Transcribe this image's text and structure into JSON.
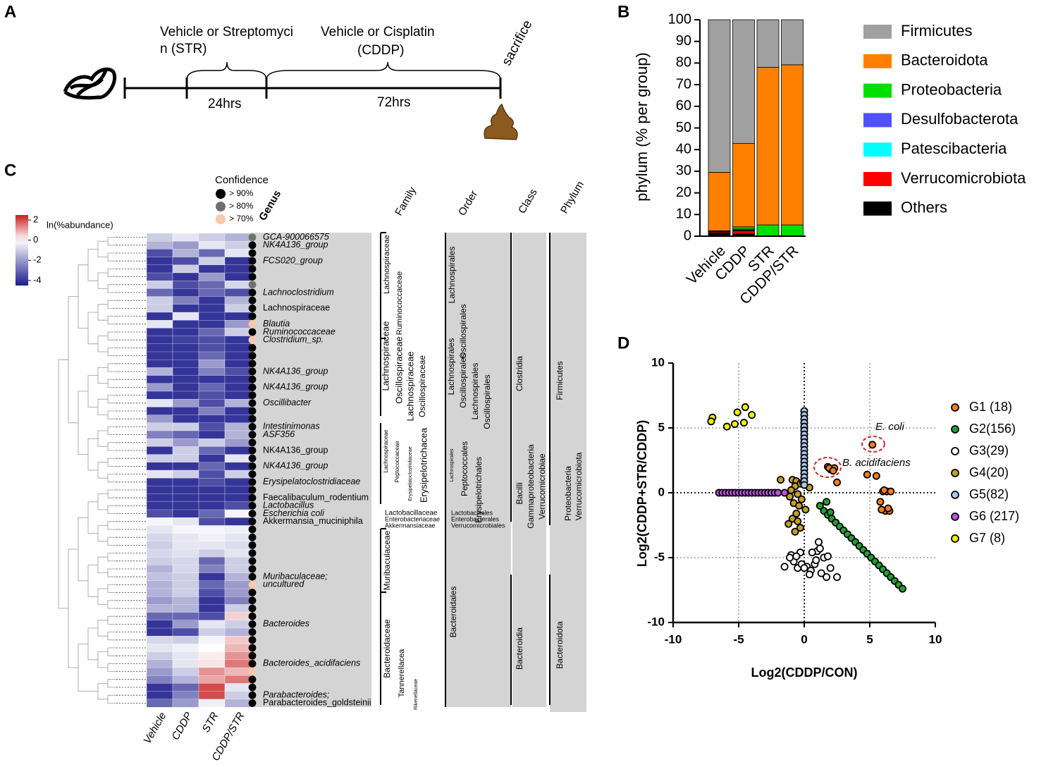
{
  "panel_labels": [
    "A",
    "B",
    "C",
    "D"
  ],
  "timeline": {
    "steps": [
      {
        "label_lines": [
          "Vehicle or Streptomyci",
          "n (STR)"
        ],
        "duration": "24hrs"
      },
      {
        "label_lines": [
          "Vehicle or Cisplatin",
          "(CDDP)"
        ],
        "duration": "72hrs"
      }
    ],
    "end": "sacrifice"
  },
  "chart_data": [
    {
      "type": "bar",
      "stacked": true,
      "ylabel": "phylum (% per group)",
      "categories": [
        "Vehicle",
        "CDDP",
        "STR",
        "CDDP/STR"
      ],
      "ylim": [
        0,
        100
      ],
      "yticks": [
        0,
        10,
        20,
        30,
        40,
        50,
        60,
        70,
        80,
        90,
        100
      ],
      "legend": "right",
      "series": [
        {
          "name": "Firmicutes",
          "color": "#a0a0a0",
          "values": [
            70.5,
            57.2,
            22,
            20.8
          ]
        },
        {
          "name": "Bacteroidota",
          "color": "#ff8000",
          "values": [
            27,
            38.5,
            72.8,
            74
          ]
        },
        {
          "name": "Proteobacteria",
          "color": "#00e000",
          "values": [
            0.2,
            1,
            5,
            5
          ]
        },
        {
          "name": "Desulfobacterota",
          "color": "#5050ff",
          "values": [
            0.3,
            0.5,
            0,
            0
          ]
        },
        {
          "name": "Patescibacteria",
          "color": "#00ffff",
          "values": [
            0,
            0.3,
            0,
            0
          ]
        },
        {
          "name": "Verrucomicrobiota",
          "color": "#ff0000",
          "values": [
            0.5,
            1.5,
            0,
            0
          ]
        },
        {
          "name": "Others",
          "color": "#000000",
          "values": [
            1.5,
            1,
            0.2,
            0.2
          ]
        }
      ]
    },
    {
      "type": "heatmap",
      "colorbar_label": "ln(%abundance)",
      "clim": [
        -4.5,
        2.5
      ],
      "cticks": [
        2,
        0,
        -2,
        -4
      ],
      "colors": {
        "low": "#1c1c8c",
        "mid": "#ffffff",
        "high": "#c81e1e"
      },
      "columns": [
        "Vehicle",
        "CDDP",
        "STR",
        "CDDP/STR"
      ],
      "row_header": "Genus",
      "rows": [
        "GCA-900066575",
        "NK4A136_group",
        null,
        "FCS020_group",
        null,
        null,
        null,
        "Lachnoclostridium",
        null,
        "Lachnospiraceae",
        null,
        "Blautia",
        "Ruminococcaceae",
        "Clostridium_sp.",
        null,
        null,
        null,
        "NK4A136_group",
        null,
        "NK4A136_group",
        null,
        "Oscillibacter",
        null,
        null,
        "Intestinimonas",
        "ASF356",
        null,
        "NK4A136_group",
        null,
        "NK4A136_group",
        null,
        "Erysipelatoclostridiaceae",
        null,
        "Faecalibaculum_rodentium",
        "Lactobacillus",
        "Escherichia coli",
        "Akkermansia_muciniphila",
        null,
        null,
        null,
        null,
        null,
        null,
        "Muribaculaceae;",
        "uncultured",
        null,
        null,
        null,
        null,
        "Bacteroides",
        null,
        null,
        null,
        null,
        "Bacteroides_acidifaciens",
        null,
        null,
        null,
        "Parabacteroides;",
        "Parabacteroides_goldsteinii"
      ],
      "values": [
        [
          -1,
          -0.5,
          -1,
          -1.5
        ],
        [
          -1.5,
          -2,
          -0.5,
          -1
        ],
        [
          -3.5,
          -1.5,
          -3,
          -0.5
        ],
        [
          -4,
          -3.5,
          -1,
          -4
        ],
        [
          -4,
          -1,
          -4,
          -4
        ],
        [
          -3.5,
          -4,
          -2,
          -4
        ],
        [
          -1,
          -3.5,
          -3,
          -0.8
        ],
        [
          -3,
          -4,
          -3,
          -3.5
        ],
        [
          -1,
          -2.5,
          -4,
          -1.5
        ],
        [
          -1,
          -4,
          -4,
          -1
        ],
        [
          -4,
          -0.5,
          -4,
          -4
        ],
        [
          -0.5,
          -4,
          -4,
          -2
        ],
        [
          -4,
          -4,
          -3,
          -1
        ],
        [
          -4,
          -3.8,
          -3.5,
          -4
        ],
        [
          -4,
          -4,
          -3.5,
          -4
        ],
        [
          -4,
          -4,
          -3,
          -4
        ],
        [
          -4,
          -4,
          -2,
          -4
        ],
        [
          -1.5,
          -4,
          -2.5,
          -3.5
        ],
        [
          -4,
          -4,
          -4,
          -4
        ],
        [
          -2,
          -4,
          -3,
          -4
        ],
        [
          -4,
          -4,
          -3.5,
          -4
        ],
        [
          -0.5,
          -2,
          -3.5,
          -1.5
        ],
        [
          -4,
          -4,
          -2.5,
          -4
        ],
        [
          -2,
          -4,
          -4,
          -4
        ],
        [
          -1,
          -1,
          -3.5,
          -1.5
        ],
        [
          -2.5,
          -3,
          -4,
          -1.5
        ],
        [
          -1,
          -2,
          -1,
          -2
        ],
        [
          -4,
          -1,
          -3,
          -4
        ],
        [
          -1,
          -1,
          -4,
          -0.5
        ],
        [
          -4,
          -4,
          -3,
          -4
        ],
        [
          -0.5,
          -1,
          -3.5,
          -1
        ],
        [
          -4,
          -4,
          -3.5,
          -4
        ],
        [
          -4,
          -4,
          -4,
          -4
        ],
        [
          -4,
          -4,
          -4,
          -4
        ],
        [
          -4,
          -4,
          -4,
          -3.5
        ],
        [
          -3.5,
          -4,
          -3,
          -0.2
        ],
        [
          -0.2,
          -0.5,
          -3.5,
          -4
        ],
        [
          -0.5,
          -0.2,
          -0.2,
          -0.3
        ],
        [
          -0.8,
          -0.5,
          -0.3,
          -0.5
        ],
        [
          -1,
          -0.5,
          -0.5,
          -0.7
        ],
        [
          -0.8,
          -0.6,
          -1,
          -0.5
        ],
        [
          -1,
          -0.8,
          -3,
          -1
        ],
        [
          -1.5,
          -0.8,
          -2.5,
          -1
        ],
        [
          -1.2,
          -1,
          -4,
          -1.5
        ],
        [
          -1.5,
          -1,
          -3,
          -2
        ],
        [
          -1.5,
          -1,
          -3.5,
          -2
        ],
        [
          -2,
          -1.5,
          -4,
          -2.5
        ],
        [
          -1.5,
          -1.5,
          -4,
          -1
        ],
        [
          -3,
          -3,
          -3.5,
          0.5
        ],
        [
          -4,
          -2,
          -0.5,
          -1
        ],
        [
          -4,
          -3.5,
          -1,
          -1.5
        ],
        [
          -0.8,
          -1,
          -0.2,
          0.6
        ],
        [
          -0.5,
          -0.3,
          0,
          0.8
        ],
        [
          -1,
          -0.5,
          0.2,
          1.2
        ],
        [
          -1.5,
          -0.5,
          0.3,
          1.5
        ],
        [
          -2,
          -1,
          1.2,
          0.8
        ],
        [
          -2.5,
          -1.5,
          1,
          1.5
        ],
        [
          -4,
          -3,
          2,
          -0.5
        ],
        [
          -4,
          -2.5,
          2,
          -1
        ],
        [
          -3,
          -2,
          -0.3,
          -1.5
        ]
      ],
      "confidence_title": "Confidence",
      "confidence_levels": [
        {
          "value": 90,
          "label": "> 90%",
          "color": "#000000"
        },
        {
          "value": 80,
          "label": "> 80%",
          "color": "#707070"
        },
        {
          "value": 70,
          "label": "> 70%",
          "color": "#f8c8a8"
        }
      ],
      "confidence": [
        80,
        90,
        90,
        90,
        90,
        90,
        80,
        90,
        90,
        90,
        90,
        70,
        90,
        70,
        90,
        90,
        90,
        90,
        90,
        90,
        90,
        90,
        90,
        90,
        90,
        90,
        90,
        90,
        90,
        90,
        90,
        90,
        90,
        90,
        90,
        90,
        90,
        90,
        90,
        90,
        90,
        90,
        90,
        90,
        70,
        90,
        90,
        90,
        90,
        90,
        90,
        90,
        90,
        90,
        90,
        70,
        90,
        90,
        90,
        90
      ],
      "taxonomy": [
        {
          "header": "Family",
          "labels": [
            "Lachnospiraceae",
            "Ruminococcaceae",
            "Lachnospiraceae",
            "Oscillospiraceae",
            "Lachnospiraceae",
            "Oscillospiraceae",
            "Lachnospiraceae",
            "Peptococcaceae",
            "Erysipelatoclostridiaceae",
            "Erysipelotrichacea",
            "Lactobacillaceae",
            "Enterobacteriaceae",
            "Akkermansiaceae",
            "Muribaculaceae",
            "Bacteroidaceae",
            "Tannerellacea",
            "Rikenellaceae"
          ]
        },
        {
          "header": "Order",
          "labels": [
            "Lachnospirales",
            "Oscillospirales",
            "Lachnospirales",
            "Oscillospirales",
            "Lachnospirales",
            "Oscillospirales",
            "Lachnospirales",
            "Peptococcales",
            "Erysipelotrichales",
            "Lactobacillales",
            "Enterobacterales",
            "Verrucomicrobiales",
            "Bacteroidales"
          ]
        },
        {
          "header": "Class",
          "labels": [
            "Clostridia",
            "Bacilli",
            "Gammaproteobacteria",
            "Verrucomicrobiae",
            "Bacteroidia"
          ]
        },
        {
          "header": "Phylum",
          "labels": [
            "Firmicutes",
            "Proteobacteria",
            "Verrucomicrobiota",
            "Bacteroidota"
          ]
        }
      ]
    },
    {
      "type": "scatter",
      "xlabel": "Log2(CDDP/CON)",
      "ylabel": "Log2(CDDP+STR/CDDP)",
      "xlim": [
        -10,
        10
      ],
      "ylim": [
        -10,
        10
      ],
      "xticks": [
        -10,
        -5,
        0,
        5,
        10
      ],
      "yticks": [
        -10,
        -5,
        0,
        5,
        10
      ],
      "grid": true,
      "legend": "right",
      "annotations": [
        "E. coli",
        "B. acidifaciens"
      ],
      "annotation_color": "#e02020",
      "series": [
        {
          "name": "G1 (18)",
          "color": "#f07f1a",
          "x": [
            5.2,
            1.8,
            2.0,
            2.3,
            2.5,
            4.8,
            5.5,
            6.0,
            6.3,
            6.6,
            5.8,
            6.2,
            6.5,
            1.9,
            6.1,
            5.9,
            2.2,
            6.4
          ],
          "y": [
            3.7,
            2.0,
            1.8,
            1.9,
            0.8,
            1.4,
            1.3,
            0.1,
            0.1,
            0.1,
            -0.7,
            -1.4,
            -1.4,
            1.9,
            0.2,
            -1.3,
            1.7,
            -1.2
          ]
        },
        {
          "name": "G2(156)",
          "color": "#1fa32e",
          "x": [
            1.5,
            1.8,
            2.1,
            2.4,
            2.7,
            3.0,
            3.3,
            3.6,
            3.9,
            4.2,
            4.5,
            4.8,
            5.1,
            5.4,
            5.7,
            6.0,
            6.3,
            6.6,
            6.9,
            7.2,
            7.5,
            1.2,
            1.7,
            2.0
          ],
          "y": [
            -1.4,
            -1.7,
            -2.0,
            -2.3,
            -2.6,
            -2.9,
            -3.2,
            -3.5,
            -3.8,
            -4.1,
            -4.4,
            -4.7,
            -5.0,
            -5.3,
            -5.6,
            -5.9,
            -6.2,
            -6.5,
            -6.8,
            -7.1,
            -7.4,
            -1.0,
            -0.7,
            -1.5
          ]
        },
        {
          "name": "G3(29)",
          "color": "#ffffff",
          "x": [
            -0.5,
            -1.5,
            -1,
            -0.8,
            -0.3,
            0.2,
            0.5,
            0.8,
            1.0,
            1.2,
            1.5,
            1.7,
            2.0,
            1.3,
            0.9,
            -0.6,
            -0.2,
            0.4,
            1.8,
            2.5,
            1.1,
            -1.1,
            0.0,
            0.6
          ],
          "y": [
            -5.8,
            -5.7,
            -4.8,
            -5.3,
            -4.6,
            -5.7,
            -6.0,
            -5.5,
            -4.5,
            -4.3,
            -5.0,
            -6.5,
            -5.8,
            -6.2,
            -5.2,
            -4.9,
            -5.5,
            -6.3,
            -4.9,
            -6.5,
            -3.8,
            -5.0,
            -5.8,
            -4.6
          ]
        },
        {
          "name": "G4(20)",
          "color": "#c8a01e",
          "x": [
            -1.8,
            -0.9,
            -0.6,
            -0.3,
            -0.7,
            -1.0,
            -0.5,
            -0.2,
            -0.8,
            -0.4,
            0.1,
            -0.6,
            -0.9,
            -1.2,
            -0.3,
            -0.7,
            -1.1,
            0.4,
            -0.5,
            -0.1
          ],
          "y": [
            1.0,
            1.0,
            0.9,
            0.7,
            0.5,
            0.2,
            -0.1,
            -0.5,
            -0.8,
            -1.0,
            -1.3,
            -1.6,
            -2.0,
            -2.4,
            -2.7,
            -3.0,
            -0.3,
            0.4,
            -2.2,
            0.8
          ]
        },
        {
          "name": "G5(82)",
          "color": "#a8c8f0",
          "x": [
            0,
            0,
            0,
            0,
            0,
            0,
            0,
            0,
            0,
            0,
            0,
            0,
            0,
            0,
            0,
            0,
            0,
            0,
            0,
            0
          ],
          "y": [
            6.3,
            6.0,
            5.7,
            5.4,
            5.1,
            4.8,
            4.5,
            4.2,
            3.9,
            3.6,
            3.3,
            3.0,
            2.7,
            2.4,
            2.1,
            1.8,
            1.5,
            1.2,
            0.9,
            0.6
          ]
        },
        {
          "name": "G6 (217)",
          "color": "#c050e0",
          "x": [
            -6.5,
            -6.25,
            -6,
            -5.75,
            -5.5,
            -5.25,
            -5,
            -4.75,
            -4.5,
            -4.25,
            -4,
            -3.75,
            -3.5,
            -3.25,
            -3,
            -2.75,
            -2.5,
            -2.25,
            -2,
            -1.5
          ],
          "y": [
            0,
            0,
            0,
            0,
            0,
            0,
            0,
            0,
            0,
            0,
            0,
            0,
            0,
            0,
            0,
            0,
            0,
            0,
            0,
            0
          ]
        },
        {
          "name": "G7 (8)",
          "color": "#f0f000",
          "x": [
            -7,
            -7.1,
            -5.1,
            -4.5,
            -4.6,
            -5.3,
            -5.9,
            -4.0
          ],
          "y": [
            5.8,
            5.5,
            6.2,
            6.6,
            5.4,
            5.3,
            5.1,
            6.0
          ]
        }
      ]
    }
  ]
}
